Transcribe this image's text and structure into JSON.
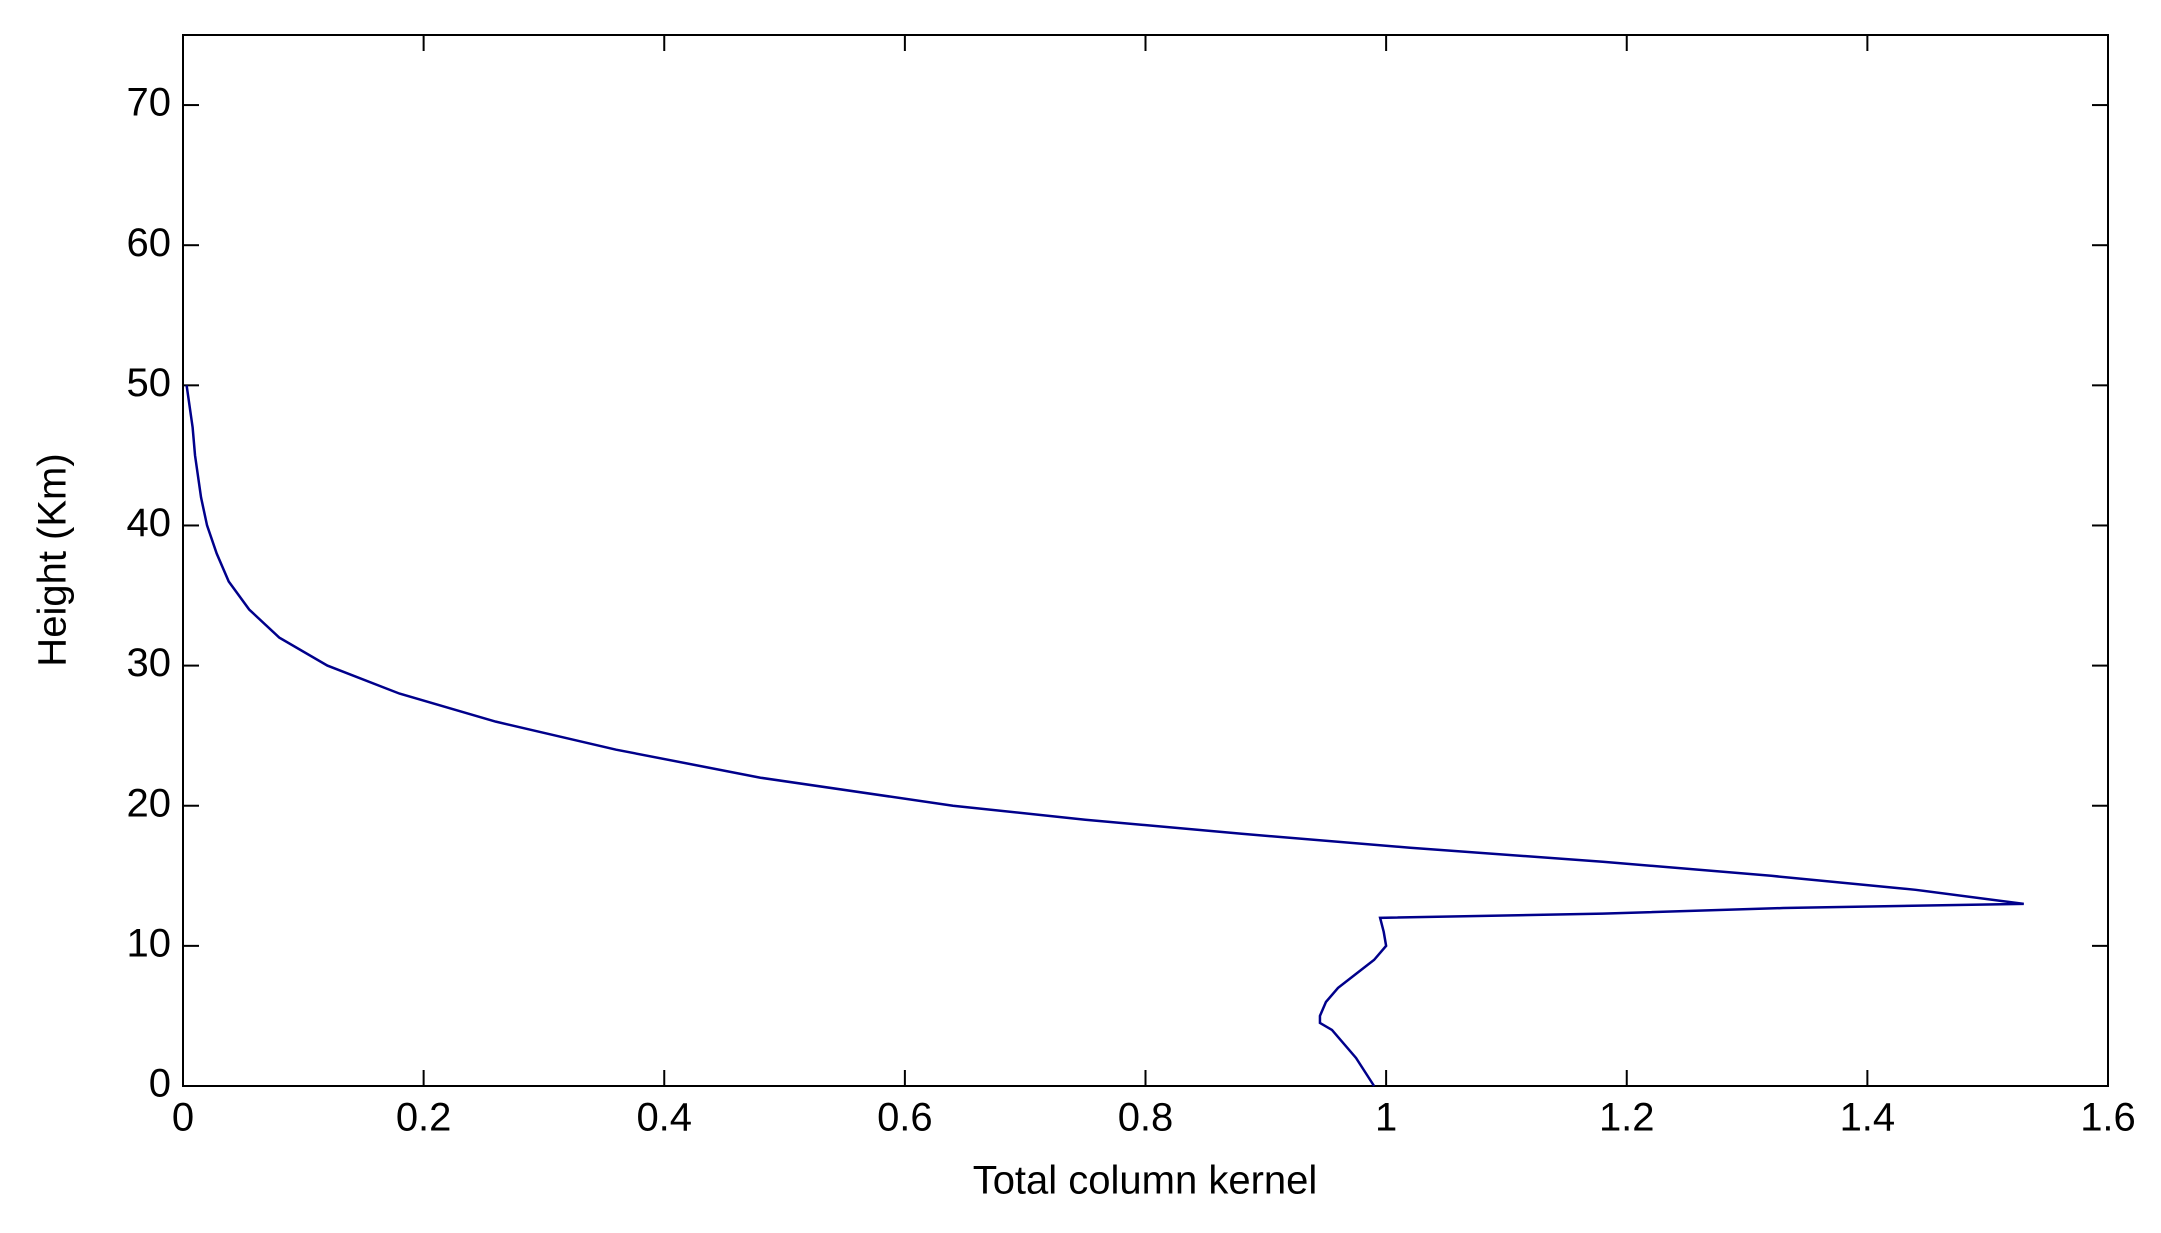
{
  "chart_data": {
    "type": "line",
    "xlabel": "Total column kernel",
    "ylabel": "Height (Km)",
    "x": [
      0.003,
      0.008,
      0.01,
      0.015,
      0.02,
      0.028,
      0.038,
      0.055,
      0.08,
      0.12,
      0.18,
      0.26,
      0.36,
      0.48,
      0.64,
      0.75,
      0.88,
      1.02,
      1.18,
      1.32,
      1.44,
      1.53,
      1.33,
      1.18,
      0.995,
      0.998,
      1.0,
      0.99,
      0.975,
      0.96,
      0.95,
      0.945,
      0.945,
      0.955,
      0.975,
      0.99
    ],
    "series": [
      {
        "color": "#00008b",
        "values": [
          50,
          47,
          45,
          42,
          40,
          38,
          36,
          34,
          32,
          30,
          28,
          26,
          24,
          22,
          20,
          19,
          18,
          17,
          16,
          15,
          14,
          13,
          12.7,
          12.3,
          12,
          11,
          10,
          9,
          8,
          7,
          6,
          5,
          4.5,
          4,
          2,
          0
        ]
      }
    ],
    "xlim": [
      0,
      1.6
    ],
    "ylim": [
      0,
      75
    ],
    "xticks": [
      0,
      0.2,
      0.4,
      0.6,
      0.8,
      1,
      1.2,
      1.4,
      1.6
    ],
    "yticks": [
      0,
      10,
      20,
      30,
      40,
      50,
      60,
      70
    ]
  }
}
